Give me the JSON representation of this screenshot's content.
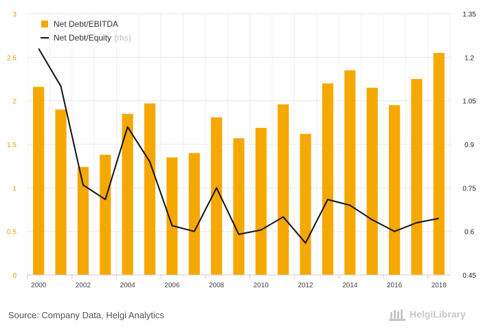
{
  "chart_data": {
    "type": "bar",
    "categories": [
      "2000",
      "2001",
      "2002",
      "2003",
      "2004",
      "2005",
      "2006",
      "2007",
      "2008",
      "2009",
      "2010",
      "2011",
      "2012",
      "2013",
      "2014",
      "2015",
      "2016",
      "2017",
      "2018"
    ],
    "series": [
      {
        "name": "Net Debt/EBITDA",
        "type": "bar",
        "axis": "left",
        "color": "#f5a800",
        "values": [
          2.16,
          1.9,
          1.24,
          1.38,
          1.85,
          1.97,
          1.35,
          1.4,
          1.81,
          1.57,
          1.69,
          1.96,
          1.62,
          2.2,
          2.35,
          2.15,
          1.95,
          2.25,
          2.55
        ]
      },
      {
        "name": "Net Debt/Equity",
        "name_suffix": "(rhs)",
        "type": "line",
        "axis": "right",
        "color": "#111111",
        "values": [
          1.23,
          1.1,
          0.76,
          0.71,
          0.96,
          0.84,
          0.62,
          0.6,
          0.75,
          0.59,
          0.605,
          0.65,
          0.56,
          0.71,
          0.69,
          0.64,
          0.6,
          0.63,
          0.645
        ]
      }
    ],
    "x_tick_labels": [
      "2000",
      "2002",
      "2004",
      "2006",
      "2008",
      "2010",
      "2012",
      "2014",
      "2016",
      "2018"
    ],
    "y_left": {
      "min": 0,
      "max": 3,
      "ticks": [
        "0",
        "0.5",
        "1",
        "1.5",
        "2",
        "2.5",
        "3"
      ],
      "tick_color": "#e0a000"
    },
    "y_right": {
      "min": 0.45,
      "max": 1.35,
      "ticks": [
        "0.45",
        "0.6",
        "0.75",
        "0.9",
        "1.05",
        "1.2",
        "1.35"
      ]
    },
    "grid": true,
    "legend_position": "top-left"
  },
  "footer": {
    "source": "Source: Company Data, Helgi Analytics",
    "logo_text": "HelgiLibrary"
  }
}
